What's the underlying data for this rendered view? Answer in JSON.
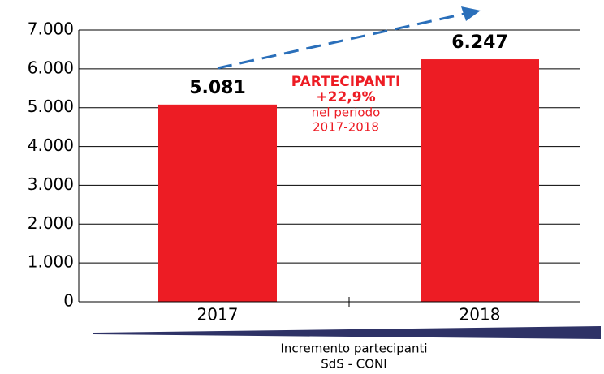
{
  "chart_data": {
    "type": "bar",
    "categories": [
      "2017",
      "2018"
    ],
    "values": [
      5081,
      6247
    ],
    "value_labels": [
      "5.081",
      "6.247"
    ],
    "color": "#ed1c24",
    "ylim": [
      0,
      7000
    ],
    "yticks": [
      {
        "value": 0,
        "label": "0"
      },
      {
        "value": 1000,
        "label": "1.000"
      },
      {
        "value": 2000,
        "label": "2.000"
      },
      {
        "value": 3000,
        "label": "3.000"
      },
      {
        "value": 4000,
        "label": "4.000"
      },
      {
        "value": 5000,
        "label": "5.000"
      },
      {
        "value": 6000,
        "label": "6.000"
      },
      {
        "value": 7000,
        "label": "7.000"
      }
    ],
    "grid": true,
    "annotation": [
      "PARTECIPANTI",
      "+22,9%",
      "nel periodo",
      "2017-2018"
    ],
    "footer": [
      "Incremento partecipanti",
      "SdS - CONI"
    ]
  }
}
